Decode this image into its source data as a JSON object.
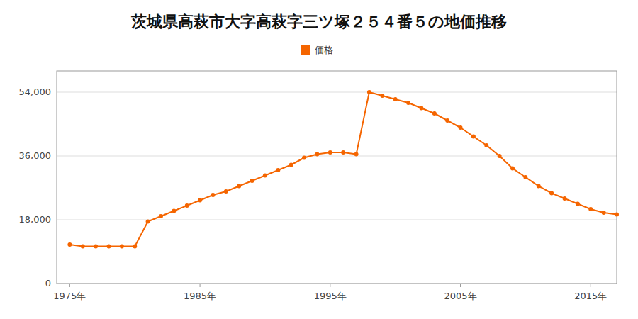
{
  "chart_data": {
    "type": "line",
    "title": "茨城県高萩市大字高萩字三ツ塚２５４番５の地価推移",
    "x": [
      1975,
      1976,
      1977,
      1978,
      1979,
      1980,
      1981,
      1982,
      1983,
      1984,
      1985,
      1986,
      1987,
      1988,
      1989,
      1990,
      1991,
      1992,
      1993,
      1994,
      1995,
      1996,
      1997,
      1998,
      1999,
      2000,
      2001,
      2002,
      2003,
      2004,
      2005,
      2006,
      2007,
      2008,
      2009,
      2010,
      2011,
      2012,
      2013,
      2014,
      2015,
      2016,
      2017
    ],
    "series": [
      {
        "name": "価格",
        "color": "#F56500",
        "marker": "circle",
        "values": [
          11000,
          10500,
          10500,
          10500,
          10500,
          10500,
          17500,
          19000,
          20500,
          22000,
          23500,
          25000,
          26000,
          27500,
          29000,
          30500,
          32000,
          33500,
          35500,
          36500,
          37000,
          37000,
          36500,
          54000,
          53000,
          52000,
          51000,
          49500,
          48000,
          46000,
          44000,
          41500,
          39000,
          36000,
          32500,
          30000,
          27500,
          25500,
          24000,
          22500,
          21000,
          20000,
          19500
        ]
      }
    ],
    "xlim": [
      1974,
      2017
    ],
    "ylim": [
      0,
      60000
    ],
    "xticks": [
      {
        "value": 1975,
        "label": "1975年"
      },
      {
        "value": 1985,
        "label": "1985年"
      },
      {
        "value": 1995,
        "label": "1995年"
      },
      {
        "value": 2005,
        "label": "2005年"
      },
      {
        "value": 2015,
        "label": "2015年"
      }
    ],
    "yticks": [
      0,
      {
        "value": 18000,
        "label": "18,000"
      },
      {
        "value": 36000,
        "label": "36,000"
      },
      {
        "value": 54000,
        "label": "54,000"
      }
    ],
    "grid": true,
    "legend": "top"
  }
}
